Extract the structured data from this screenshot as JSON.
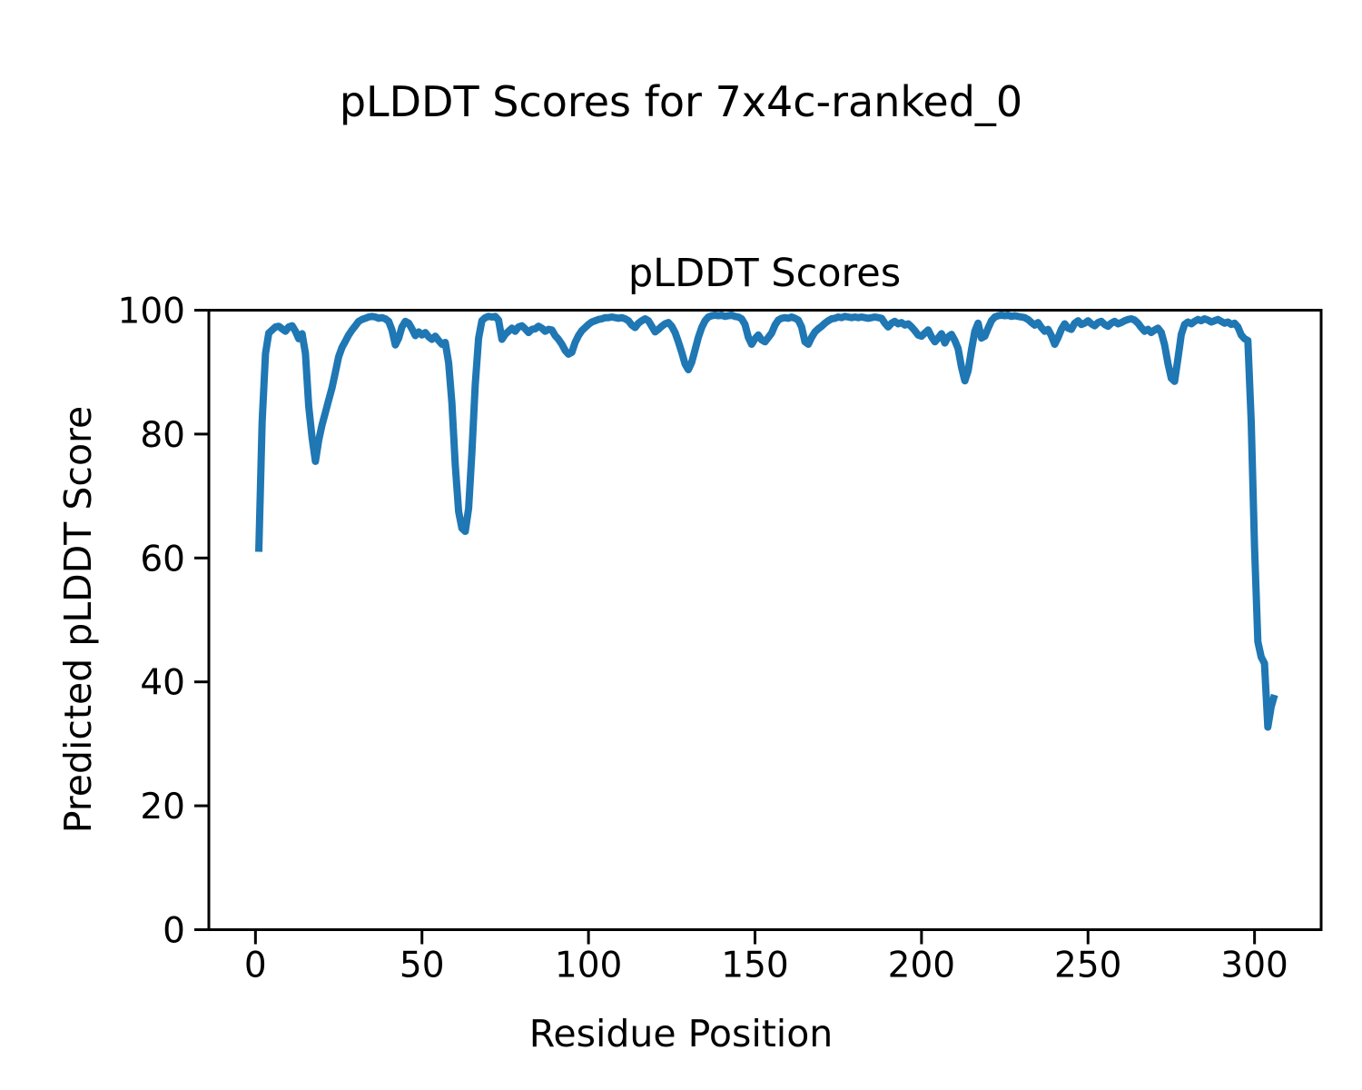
{
  "figure": {
    "suptitle": "pLDDT Scores for 7x4c-ranked_0"
  },
  "chart_data": {
    "type": "line",
    "title": "pLDDT Scores",
    "xlabel": "Residue Position",
    "ylabel": "Predicted pLDDT Score",
    "xlim": [
      -14,
      320
    ],
    "ylim": [
      0,
      100
    ],
    "xticks": [
      0,
      50,
      100,
      150,
      200,
      250,
      300
    ],
    "yticks": [
      0,
      20,
      40,
      60,
      80,
      100
    ],
    "grid": false,
    "legend": "none",
    "series": [
      {
        "name": "pLDDT",
        "color": "#1f77b4",
        "x_start": 1,
        "x_step": 1,
        "values": [
          61.0,
          82.0,
          93.0,
          96.3,
          96.8,
          97.3,
          97.4,
          97.0,
          96.6,
          97.3,
          97.5,
          96.6,
          95.4,
          96.2,
          93.0,
          84.5,
          79.4,
          75.6,
          79.0,
          81.5,
          83.5,
          85.5,
          87.5,
          90.0,
          92.5,
          94.0,
          95.0,
          96.0,
          96.8,
          97.5,
          98.2,
          98.5,
          98.7,
          98.9,
          99.0,
          98.9,
          98.7,
          98.8,
          98.6,
          98.2,
          96.8,
          94.4,
          95.5,
          97.3,
          98.2,
          97.9,
          97.0,
          95.9,
          96.5,
          96.0,
          96.4,
          95.7,
          95.3,
          95.8,
          95.1,
          94.5,
          94.8,
          91.5,
          85.0,
          75.0,
          67.5,
          64.8,
          64.3,
          68.0,
          77.0,
          88.0,
          95.5,
          98.3,
          98.8,
          99.0,
          98.9,
          99.0,
          98.4,
          95.3,
          96.1,
          96.6,
          97.1,
          96.6,
          97.3,
          97.5,
          97.0,
          96.4,
          96.9,
          97.0,
          97.4,
          97.1,
          96.6,
          96.9,
          96.8,
          95.9,
          95.3,
          94.5,
          93.5,
          92.9,
          93.2,
          94.8,
          95.9,
          96.7,
          97.2,
          97.7,
          98.1,
          98.3,
          98.5,
          98.6,
          98.8,
          98.8,
          98.9,
          98.8,
          98.7,
          98.8,
          98.6,
          98.3,
          97.6,
          97.2,
          97.9,
          98.3,
          98.6,
          98.3,
          97.4,
          96.5,
          96.9,
          97.4,
          97.8,
          98.0,
          97.4,
          96.4,
          94.9,
          93.2,
          91.3,
          90.4,
          91.6,
          93.6,
          95.6,
          97.2,
          98.3,
          98.9,
          99.1,
          99.2,
          99.1,
          99.2,
          99.0,
          99.1,
          99.2,
          99.0,
          98.9,
          98.6,
          97.7,
          95.6,
          94.5,
          95.4,
          96.0,
          95.2,
          94.9,
          95.6,
          96.3,
          97.6,
          98.4,
          98.7,
          98.8,
          98.7,
          98.9,
          98.7,
          98.4,
          97.3,
          94.9,
          94.5,
          95.6,
          96.5,
          97.0,
          97.4,
          97.9,
          98.3,
          98.6,
          98.7,
          98.9,
          98.8,
          99.0,
          98.9,
          98.8,
          98.9,
          98.8,
          98.9,
          98.8,
          98.7,
          98.8,
          98.9,
          98.8,
          98.7,
          97.9,
          97.3,
          97.9,
          98.2,
          97.8,
          98.0,
          97.6,
          97.8,
          97.3,
          96.7,
          96.0,
          95.8,
          96.3,
          96.8,
          95.7,
          94.9,
          95.5,
          96.2,
          94.7,
          95.7,
          96.1,
          95.1,
          93.8,
          90.8,
          88.6,
          90.2,
          93.6,
          96.6,
          97.9,
          95.5,
          95.8,
          97.1,
          98.3,
          98.9,
          99.1,
          99.2,
          99.1,
          99.2,
          99.0,
          99.1,
          99.0,
          98.9,
          98.8,
          98.5,
          98.0,
          97.6,
          98.0,
          97.2,
          96.6,
          96.9,
          95.9,
          94.5,
          95.6,
          96.9,
          97.8,
          97.1,
          96.9,
          97.9,
          98.3,
          97.7,
          97.9,
          98.3,
          97.8,
          97.5,
          98.0,
          98.2,
          97.7,
          97.4,
          97.9,
          98.2,
          97.8,
          98.0,
          98.3,
          98.5,
          98.6,
          98.4,
          97.9,
          97.2,
          96.6,
          96.9,
          96.4,
          96.8,
          97.1,
          96.4,
          94.4,
          91.4,
          89.0,
          88.5,
          92.2,
          96.1,
          97.7,
          98.1,
          97.8,
          98.2,
          98.5,
          98.3,
          98.6,
          98.4,
          98.1,
          98.3,
          98.5,
          98.2,
          97.9,
          98.1,
          97.7,
          97.9,
          97.3,
          96.0,
          95.4,
          95.1,
          82.0,
          62.0,
          46.5,
          44.0,
          43.0,
          32.7,
          36.0,
          37.9
        ]
      }
    ]
  }
}
